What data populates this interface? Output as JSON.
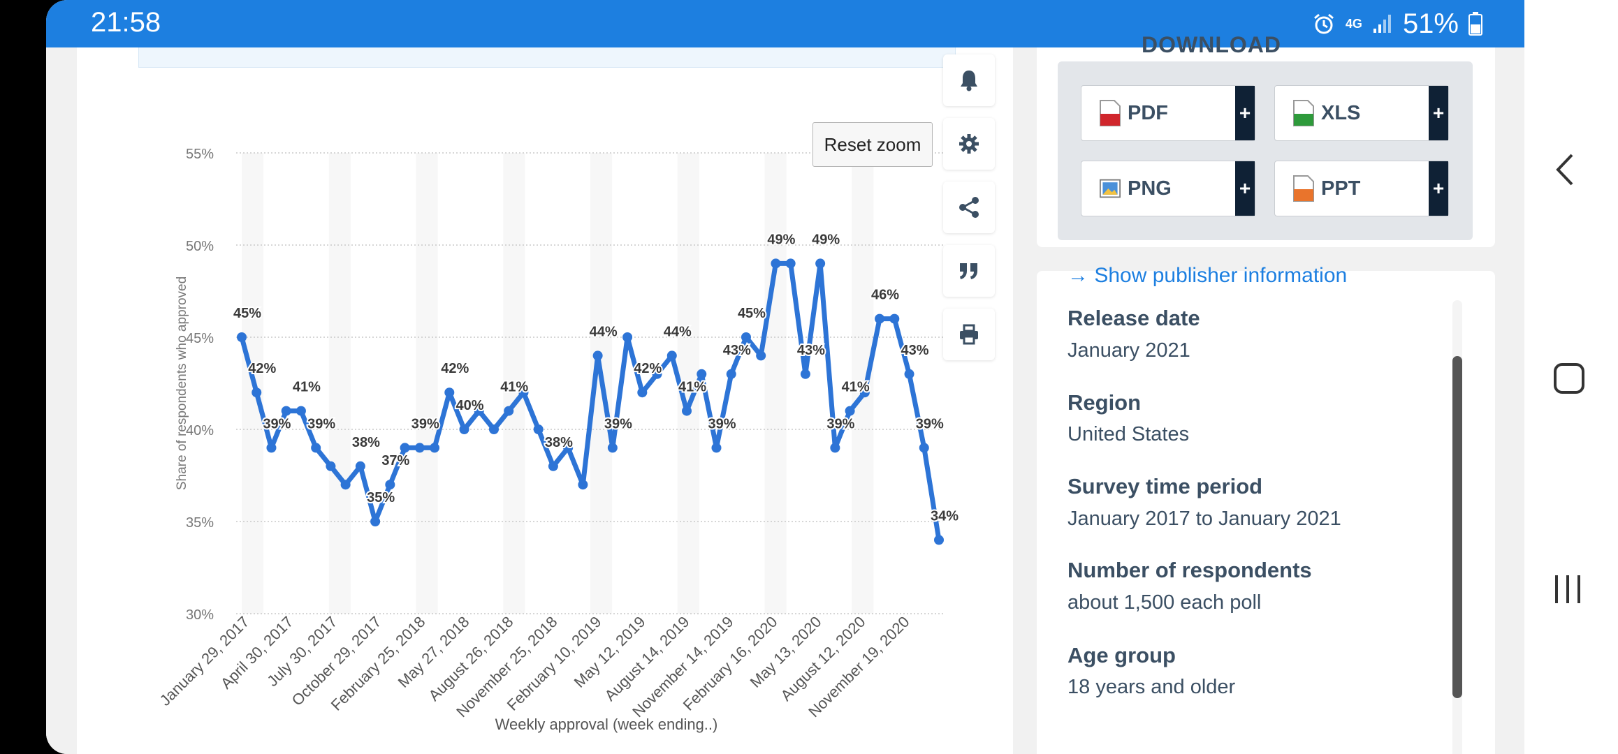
{
  "status_bar": {
    "time": "21:58",
    "network": "4G",
    "battery": "51%"
  },
  "chart_card": {
    "reset_zoom_label": "Reset zoom",
    "tools": [
      {
        "name": "notification-icon"
      },
      {
        "name": "gear-icon"
      },
      {
        "name": "share-icon"
      },
      {
        "name": "quote-icon"
      },
      {
        "name": "print-icon"
      }
    ]
  },
  "chart_data": {
    "type": "line",
    "xlabel": "Weekly approval (week ending..)",
    "ylabel": "Share of respondents who approved",
    "ylim": [
      30,
      55
    ],
    "yticks": [
      "30%",
      "35%",
      "40%",
      "45%",
      "50%",
      "55%"
    ],
    "grid": true,
    "color": "#2d74d6",
    "x_tick_labels": [
      "January 29, 2017",
      "April 30, 2017",
      "July 30, 2017",
      "October 29, 2017",
      "February 25, 2018",
      "May 27, 2018",
      "August 26, 2018",
      "November 25, 2018",
      "February 10, 2019",
      "May 12, 2019",
      "August 14, 2019",
      "November 14, 2019",
      "February 16, 2020",
      "May 13, 2020",
      "August 12, 2020",
      "November 19, 2020"
    ],
    "values": [
      45,
      42,
      39,
      41,
      41,
      39,
      38,
      37,
      38,
      35,
      37,
      39,
      39,
      39,
      42,
      40,
      41,
      40,
      41,
      42,
      40,
      38,
      39,
      37,
      44,
      39,
      45,
      42,
      43,
      44,
      41,
      43,
      39,
      43,
      45,
      44,
      49,
      49,
      43,
      49,
      39,
      41,
      42,
      46,
      46,
      43,
      39,
      34
    ],
    "labeled_points": [
      0,
      1,
      2,
      4,
      5,
      8,
      9,
      10,
      12,
      14,
      15,
      18,
      21,
      24,
      25,
      27,
      29,
      30,
      32,
      33,
      34,
      36,
      38,
      39,
      40,
      41,
      43,
      45,
      46,
      47
    ]
  },
  "download": {
    "title": "DOWNLOAD",
    "buttons": [
      {
        "label": "PDF",
        "plus": "+"
      },
      {
        "label": "XLS",
        "plus": "+"
      },
      {
        "label": "PNG",
        "plus": "+"
      },
      {
        "label": "PPT",
        "plus": "+"
      }
    ]
  },
  "info": {
    "publisher_link": "→ Show publisher information",
    "items": [
      {
        "label": "Release date",
        "value": "January 2021"
      },
      {
        "label": "Region",
        "value": "United States"
      },
      {
        "label": "Survey time period",
        "value": "January 2017 to January 2021"
      },
      {
        "label": "Number of respondents",
        "value": "about 1,500 each poll"
      },
      {
        "label": "Age group",
        "value": "18 years and older"
      }
    ]
  }
}
